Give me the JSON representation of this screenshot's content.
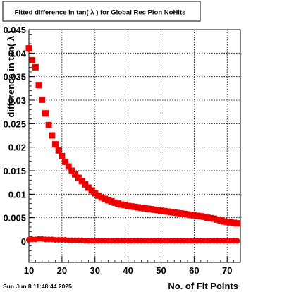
{
  "chart_data": {
    "type": "scatter",
    "title": "Fitted difference in tan( λ ) for Global Rec Pion NoHits",
    "xlabel": "No. of Fit Points",
    "ylabel": "difference in tan( λ )",
    "xlim": [
      10,
      74
    ],
    "ylim": [
      -0.0045,
      0.045
    ],
    "xticks": [
      10,
      20,
      30,
      40,
      50,
      60,
      70
    ],
    "xtick_labels": [
      "10",
      "20",
      "30",
      "40",
      "50",
      "60",
      "70"
    ],
    "yticks": [
      0,
      0.005,
      0.01,
      0.015,
      0.02,
      0.025,
      0.03,
      0.035,
      0.04,
      0.045
    ],
    "ytick_labels": [
      "0",
      "0.005",
      "0.01",
      "0.015",
      "0.02",
      "0.025",
      "0.03",
      "0.035",
      "0.04",
      "0.045"
    ],
    "grid": true,
    "legend": "none",
    "marker_color": "#ee0000",
    "series": [
      {
        "marker": "square",
        "x": [
          10,
          11,
          12,
          13,
          14,
          15,
          16,
          17,
          18,
          19,
          20,
          21,
          22,
          23,
          24,
          25,
          26,
          27,
          28,
          29,
          30,
          31,
          32,
          33,
          34,
          35,
          36,
          37,
          38,
          39,
          40,
          41,
          42,
          43,
          44,
          45,
          46,
          47,
          48,
          49,
          50,
          51,
          52,
          53,
          54,
          55,
          56,
          57,
          58,
          59,
          60,
          61,
          62,
          63,
          64,
          65,
          66,
          67,
          68,
          69,
          70,
          71,
          72,
          73
        ],
        "y": [
          0.041,
          0.0385,
          0.037,
          0.0332,
          0.0301,
          0.0272,
          0.0247,
          0.0225,
          0.0206,
          0.0193,
          0.0181,
          0.0169,
          0.0159,
          0.015,
          0.0142,
          0.0135,
          0.0128,
          0.0121,
          0.0114,
          0.0108,
          0.0102,
          0.0097,
          0.0093,
          0.009,
          0.0087,
          0.0085,
          0.0082,
          0.008,
          0.0078,
          0.0077,
          0.0075,
          0.0074,
          0.0073,
          0.0072,
          0.0071,
          0.007,
          0.0069,
          0.0068,
          0.0067,
          0.0066,
          0.0065,
          0.0064,
          0.0063,
          0.0062,
          0.0061,
          0.006,
          0.0059,
          0.0058,
          0.0057,
          0.0056,
          0.0055,
          0.0054,
          0.0053,
          0.0052,
          0.005,
          0.0049,
          0.0048,
          0.0046,
          0.0044,
          0.0042,
          0.0041,
          0.004,
          0.0039,
          0.0038
        ]
      },
      {
        "marker": "circle",
        "x": [
          10,
          11,
          12,
          13,
          14,
          15,
          16,
          17,
          18,
          19,
          20,
          21,
          22,
          23,
          24,
          25,
          26,
          27,
          28,
          29,
          30,
          31,
          32,
          33,
          34,
          35,
          36,
          37,
          38,
          39,
          40,
          41,
          42,
          43,
          44,
          45,
          46,
          47,
          48,
          49,
          50,
          51,
          52,
          53,
          54,
          55,
          56,
          57,
          58,
          59,
          60,
          61,
          62,
          63,
          64,
          65,
          66,
          67,
          68,
          69,
          70,
          71,
          72,
          73
        ],
        "y": [
          0.0003,
          0.0004,
          0.0004,
          0.0005,
          0.0005,
          0.0004,
          0.0004,
          0.0004,
          0.0003,
          0.0003,
          0.0003,
          0.0003,
          0.0002,
          0.0002,
          0.0002,
          0.0002,
          0.0002,
          0.0001,
          0.0001,
          0.0001,
          0.0001,
          0.0001,
          0.0001,
          0.0001,
          0.0001,
          0.0001,
          0.0001,
          0.0001,
          0.0001,
          0.0001,
          0.0001,
          0.0001,
          0.0001,
          0.0001,
          0.0001,
          0.0001,
          0.0001,
          0.0001,
          0.0001,
          0.0001,
          0.0001,
          0.0001,
          0.0001,
          0.0001,
          0.0001,
          0.0001,
          0.0001,
          0.0001,
          0.0001,
          0.0001,
          0.0001,
          0.0001,
          0.0001,
          0.0001,
          0.0001,
          0.0001,
          0.0001,
          0.0001,
          0.0001,
          0.0001,
          0.0001,
          0.0001,
          0.0001,
          0.0001
        ]
      }
    ]
  },
  "footer": {
    "timestamp": "Sun Jun  8 11:48:44 2025"
  }
}
